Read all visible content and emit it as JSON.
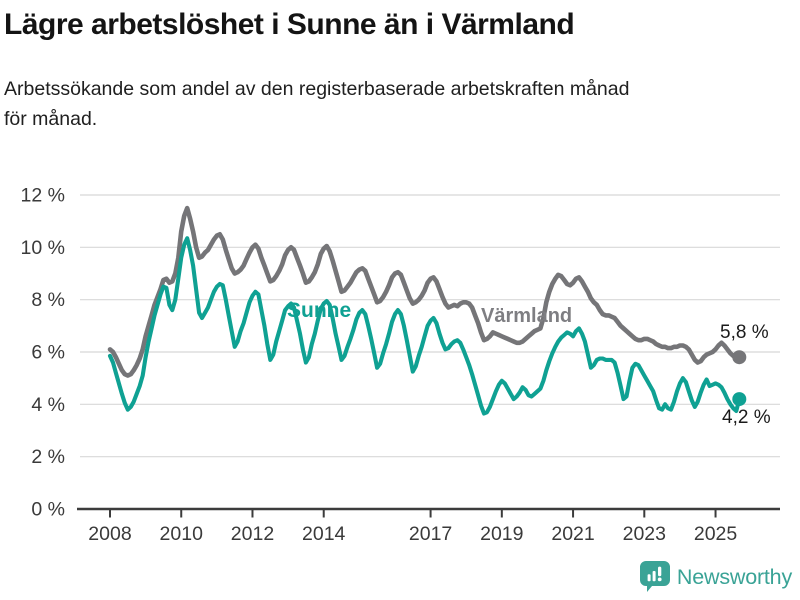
{
  "header": {
    "title": "Lägre arbetslöshet i Sunne än i Värmland",
    "subtitle": "Arbetssökande som andel av den registerbaserade arbetskraften månad för månad.",
    "subtitle_lines": [
      "Arbetssökande som andel av den registerbaserade arbetskraften månad",
      "för månad."
    ]
  },
  "chart_data": {
    "type": "line",
    "x_unit": "year-month",
    "x_start": 2008.0,
    "x_interval_months": 1,
    "xlim": [
      2007.15,
      26.8
    ],
    "x_ticks": [
      2008,
      2010,
      2012,
      2014,
      2017,
      2019,
      2021,
      2023,
      2025
    ],
    "ylim": [
      0,
      12
    ],
    "y_ticks": [
      0,
      2,
      4,
      6,
      8,
      10,
      12
    ],
    "y_tick_suffix": " %",
    "grid": true,
    "legend_position": "inline-labels",
    "series": [
      {
        "name": "Sunne",
        "color": "#0fa193",
        "end_label": "4,2 %",
        "end_value": 4.2,
        "values": [
          5.85,
          5.6,
          5.2,
          4.8,
          4.4,
          4.05,
          3.8,
          3.9,
          4.1,
          4.4,
          4.7,
          5.1,
          5.8,
          6.4,
          6.9,
          7.4,
          7.8,
          8.2,
          8.5,
          8.45,
          7.8,
          7.6,
          8.0,
          8.8,
          9.6,
          10.1,
          10.35,
          9.9,
          9.3,
          8.4,
          7.5,
          7.3,
          7.5,
          7.7,
          8.0,
          8.3,
          8.5,
          8.6,
          8.55,
          8.0,
          7.4,
          6.8,
          6.2,
          6.4,
          6.8,
          7.1,
          7.5,
          7.9,
          8.15,
          8.3,
          8.2,
          7.6,
          7.0,
          6.3,
          5.7,
          5.9,
          6.4,
          6.8,
          7.2,
          7.6,
          7.75,
          7.85,
          7.7,
          7.2,
          6.7,
          6.1,
          5.6,
          5.8,
          6.3,
          6.7,
          7.2,
          7.65,
          7.85,
          7.95,
          7.8,
          7.3,
          6.7,
          6.2,
          5.7,
          5.85,
          6.2,
          6.5,
          6.85,
          7.25,
          7.5,
          7.6,
          7.45,
          7.0,
          6.5,
          5.95,
          5.4,
          5.55,
          5.95,
          6.3,
          6.7,
          7.15,
          7.45,
          7.6,
          7.45,
          7.0,
          6.45,
          5.85,
          5.25,
          5.45,
          5.85,
          6.2,
          6.6,
          7.0,
          7.2,
          7.3,
          7.1,
          6.7,
          6.35,
          6.1,
          6.15,
          6.3,
          6.4,
          6.45,
          6.35,
          6.1,
          5.8,
          5.5,
          5.15,
          4.75,
          4.35,
          3.95,
          3.65,
          3.7,
          3.9,
          4.2,
          4.5,
          4.75,
          4.9,
          4.8,
          4.6,
          4.4,
          4.2,
          4.3,
          4.45,
          4.65,
          4.55,
          4.35,
          4.3,
          4.4,
          4.5,
          4.6,
          4.9,
          5.3,
          5.65,
          5.95,
          6.2,
          6.4,
          6.55,
          6.65,
          6.75,
          6.7,
          6.6,
          6.8,
          6.9,
          6.7,
          6.4,
          5.9,
          5.4,
          5.5,
          5.7,
          5.75,
          5.75,
          5.7,
          5.7,
          5.7,
          5.6,
          5.2,
          4.7,
          4.2,
          4.3,
          4.9,
          5.4,
          5.55,
          5.5,
          5.3,
          5.1,
          4.9,
          4.7,
          4.5,
          4.15,
          3.85,
          3.8,
          4.0,
          3.85,
          3.8,
          4.1,
          4.5,
          4.8,
          5.0,
          4.85,
          4.5,
          4.15,
          3.9,
          4.1,
          4.45,
          4.75,
          4.95,
          4.7,
          4.75,
          4.8,
          4.75,
          4.65,
          4.45,
          4.2,
          4.0,
          3.85,
          3.75,
          4.2
        ]
      },
      {
        "name": "Värmland",
        "color": "#757578",
        "end_label": "5,8 %",
        "end_value": 5.8,
        "values": [
          6.1,
          6.0,
          5.8,
          5.55,
          5.3,
          5.15,
          5.1,
          5.15,
          5.3,
          5.5,
          5.75,
          6.1,
          6.6,
          7.0,
          7.4,
          7.8,
          8.1,
          8.4,
          8.75,
          8.8,
          8.65,
          8.7,
          9.0,
          9.6,
          10.6,
          11.2,
          11.5,
          11.1,
          10.6,
          10.0,
          9.6,
          9.65,
          9.8,
          9.9,
          10.1,
          10.3,
          10.45,
          10.5,
          10.3,
          9.9,
          9.55,
          9.2,
          9.0,
          9.05,
          9.15,
          9.3,
          9.55,
          9.8,
          10.0,
          10.1,
          9.95,
          9.6,
          9.3,
          9.0,
          8.7,
          8.75,
          8.9,
          9.1,
          9.35,
          9.7,
          9.9,
          10.0,
          9.9,
          9.6,
          9.3,
          9.0,
          8.65,
          8.7,
          8.85,
          9.05,
          9.35,
          9.75,
          9.95,
          10.05,
          9.85,
          9.5,
          9.1,
          8.7,
          8.3,
          8.35,
          8.5,
          8.65,
          8.85,
          9.05,
          9.15,
          9.2,
          9.1,
          8.8,
          8.5,
          8.2,
          7.9,
          7.95,
          8.1,
          8.3,
          8.55,
          8.85,
          9.0,
          9.05,
          8.95,
          8.65,
          8.35,
          8.05,
          7.85,
          7.9,
          8.0,
          8.15,
          8.35,
          8.65,
          8.8,
          8.85,
          8.7,
          8.4,
          8.1,
          7.85,
          7.7,
          7.75,
          7.8,
          7.75,
          7.85,
          7.9,
          7.9,
          7.85,
          7.7,
          7.4,
          7.1,
          6.75,
          6.45,
          6.5,
          6.6,
          6.75,
          6.7,
          6.65,
          6.6,
          6.55,
          6.5,
          6.45,
          6.4,
          6.35,
          6.35,
          6.4,
          6.5,
          6.6,
          6.7,
          6.8,
          6.85,
          6.9,
          7.3,
          7.9,
          8.3,
          8.6,
          8.8,
          8.95,
          8.9,
          8.75,
          8.6,
          8.55,
          8.65,
          8.8,
          8.85,
          8.7,
          8.5,
          8.3,
          8.05,
          7.9,
          7.8,
          7.6,
          7.45,
          7.4,
          7.4,
          7.35,
          7.3,
          7.15,
          7.0,
          6.9,
          6.8,
          6.7,
          6.6,
          6.5,
          6.45,
          6.45,
          6.5,
          6.5,
          6.45,
          6.4,
          6.3,
          6.25,
          6.2,
          6.2,
          6.15,
          6.15,
          6.2,
          6.2,
          6.25,
          6.25,
          6.2,
          6.1,
          5.9,
          5.7,
          5.6,
          5.65,
          5.8,
          5.9,
          5.95,
          6.0,
          6.1,
          6.25,
          6.35,
          6.25,
          6.1,
          5.95,
          5.85,
          5.9,
          5.8
        ]
      }
    ]
  },
  "annotations": {
    "sunne_label": "Sunne",
    "varmland_label": "Värmland",
    "sunne_end_value": "4,2 %",
    "varmland_end_value": "5,8 %"
  },
  "footer": {
    "brand": "Newsworthy",
    "brand_color": "#3aa396",
    "logo_icon": "bar-chart-speech-bubble"
  },
  "colors": {
    "sunne": "#0fa193",
    "varmland": "#757578",
    "grid": "#d8d8d8",
    "axis": "#3c3c3c",
    "tick_text": "#3a3a3a",
    "title_text": "#141414",
    "background": "#ffffff"
  }
}
